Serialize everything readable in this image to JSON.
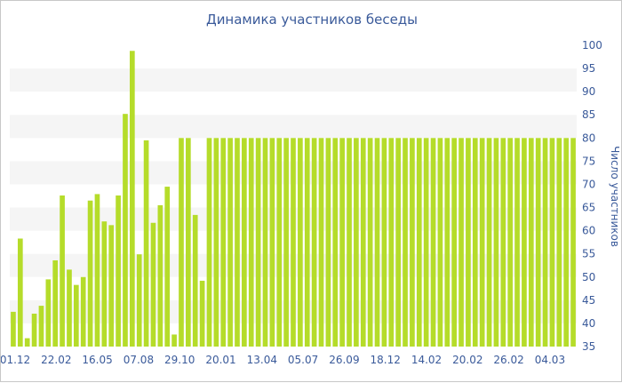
{
  "chart_data": {
    "type": "bar",
    "title": "Динамика участников беседы",
    "ylabel": "Число участников",
    "xlabel": "",
    "ylim": [
      35,
      100
    ],
    "y_ticks": [
      35,
      40,
      45,
      50,
      55,
      60,
      65,
      70,
      75,
      80,
      85,
      90,
      95,
      100
    ],
    "x_tick_labels": [
      "01.12",
      "22.02",
      "16.05",
      "07.08",
      "29.10",
      "20.01",
      "13.04",
      "05.07",
      "26.09",
      "18.12",
      "14.02",
      "20.02",
      "26.02",
      "04.03"
    ],
    "bar_color": "#b5dc2a",
    "grid": "alternating horizontal bands",
    "legend": "none",
    "values": [
      42.5,
      58.3,
      36.8,
      42.1,
      43.8,
      49.5,
      53.6,
      67.6,
      51.6,
      48.3,
      50.0,
      66.5,
      67.9,
      62.0,
      61.2,
      67.6,
      85.2,
      98.8,
      54.9,
      79.5,
      61.7,
      65.5,
      69.5,
      37.6,
      80,
      80,
      63.4,
      49.2,
      80,
      80,
      80,
      80,
      80,
      80,
      80,
      80,
      80,
      80,
      80,
      80,
      80,
      80,
      80,
      80,
      80,
      80,
      80,
      80,
      80,
      80,
      80,
      80,
      80,
      80,
      80,
      80,
      80,
      80,
      80,
      80,
      80,
      80,
      80,
      80,
      80,
      80,
      80,
      80,
      80,
      80,
      80,
      80,
      80,
      80,
      80,
      80,
      80,
      80,
      80,
      80,
      80
    ]
  }
}
